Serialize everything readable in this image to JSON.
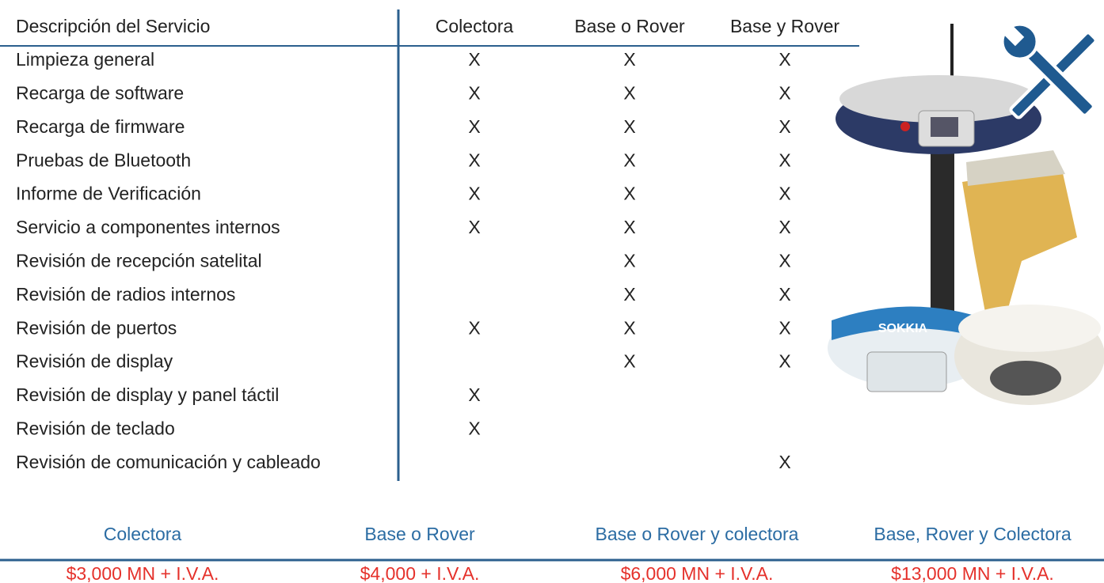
{
  "table": {
    "header": [
      "Descripción del Servicio",
      "Colectora",
      "Base o Rover",
      "Base y Rover"
    ],
    "rows": [
      [
        "Limpieza general",
        "X",
        "X",
        "X"
      ],
      [
        "Recarga de software",
        "X",
        "X",
        "X"
      ],
      [
        "Recarga de firmware",
        "X",
        "X",
        "X"
      ],
      [
        "Pruebas de Bluetooth",
        "X",
        "X",
        "X"
      ],
      [
        "Informe de Verificación",
        "X",
        "X",
        "X"
      ],
      [
        "Servicio a componentes internos",
        "X",
        "X",
        "X"
      ],
      [
        "Revisión de recepción satelital",
        null,
        "X",
        "X"
      ],
      [
        "Revisión de radios internos",
        null,
        "X",
        "X"
      ],
      [
        "Revisión de puertos",
        "X",
        "X",
        "X"
      ],
      [
        "Revisión de display",
        null,
        "X",
        "X"
      ],
      [
        "Revisión de display y panel táctil",
        "X",
        null,
        null
      ],
      [
        "Revisión de teclado",
        "X",
        null,
        null
      ],
      [
        "Revisión de comunicación y cableado",
        null,
        null,
        "X"
      ]
    ]
  },
  "prices": {
    "header": [
      "Colectora",
      "Base o Rover",
      "Base o Rover y colectora",
      "Base, Rover y Colectora"
    ],
    "values": [
      "$3,000 MN + I.V.A.",
      "$4,000 + I.V.A.",
      "$6,000 MN + I.V.A.",
      "$13,000 MN + I.V.A."
    ]
  }
}
